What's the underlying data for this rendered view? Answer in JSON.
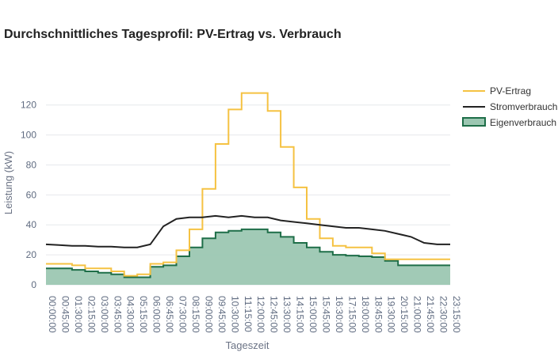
{
  "chart_data": {
    "type": "line",
    "title": "Durchschnittliches Tagesprofil: PV-Ertrag vs. Verbrauch",
    "xlabel": "Tageszeit",
    "ylabel": "Leistung (kW)",
    "ylim": [
      0,
      132
    ],
    "yticks": [
      0,
      20,
      40,
      60,
      80,
      100,
      120
    ],
    "grid": true,
    "legend_position": "top-right",
    "x": [
      "00:00:00",
      "00:45:00",
      "01:30:00",
      "02:15:00",
      "03:00:00",
      "03:45:00",
      "04:30:00",
      "05:15:00",
      "06:00:00",
      "06:45:00",
      "07:30:00",
      "08:15:00",
      "09:00:00",
      "09:45:00",
      "10:30:00",
      "11:15:00",
      "12:00:00",
      "12:45:00",
      "13:30:00",
      "14:15:00",
      "15:00:00",
      "15:45:00",
      "16:30:00",
      "17:15:00",
      "18:00:00",
      "18:45:00",
      "19:30:00",
      "20:15:00",
      "21:00:00",
      "21:45:00",
      "22:30:00",
      "23:15:00"
    ],
    "xticks": [
      "00:00:00",
      "00:45:00",
      "01:30:00",
      "02:15:00",
      "03:00:00",
      "03:45:00",
      "04:30:00",
      "05:15:00",
      "06:00:00",
      "06:45:00",
      "07:30:00",
      "08:15:00",
      "09:00:00",
      "09:45:00",
      "10:30:00",
      "11:15:00",
      "12:00:00",
      "12:45:00",
      "13:30:00",
      "14:15:00",
      "15:00:00",
      "15:45:00",
      "16:30:00",
      "17:15:00",
      "18:00:00",
      "18:45:00",
      "19:30:00",
      "20:15:00",
      "21:00:00",
      "21:45:00",
      "22:30:00",
      "23:15:00"
    ],
    "series": [
      {
        "name": "PV-Ertrag",
        "type": "step-line",
        "color": "#f5c242",
        "values": [
          14,
          14,
          13,
          11,
          11,
          9,
          6,
          7,
          14,
          15,
          23,
          37,
          64,
          94,
          117,
          128,
          128,
          116,
          92,
          65,
          44,
          31,
          26,
          25,
          25,
          21,
          17,
          17,
          17,
          17,
          17,
          17
        ]
      },
      {
        "name": "Stromverbrauch",
        "type": "line",
        "color": "#222222",
        "values": [
          27,
          26.5,
          26,
          26,
          25.5,
          25.5,
          25,
          25,
          27,
          39,
          44,
          45,
          45,
          46,
          45,
          46,
          45,
          45,
          43,
          42,
          41,
          40,
          39,
          38,
          38,
          37,
          36,
          34,
          32,
          28,
          27,
          27
        ]
      },
      {
        "name": "Eigenverbrauch",
        "type": "step-area",
        "color": "#1e6e48",
        "fill": "#9cc7b2",
        "values": [
          11,
          11,
          10,
          9,
          8,
          7,
          5,
          5,
          12,
          13,
          19,
          25,
          31,
          35,
          36,
          37,
          37,
          35,
          32,
          28,
          25,
          22,
          20,
          19.5,
          19,
          18.5,
          16,
          13,
          13,
          13,
          13,
          13
        ]
      }
    ]
  }
}
